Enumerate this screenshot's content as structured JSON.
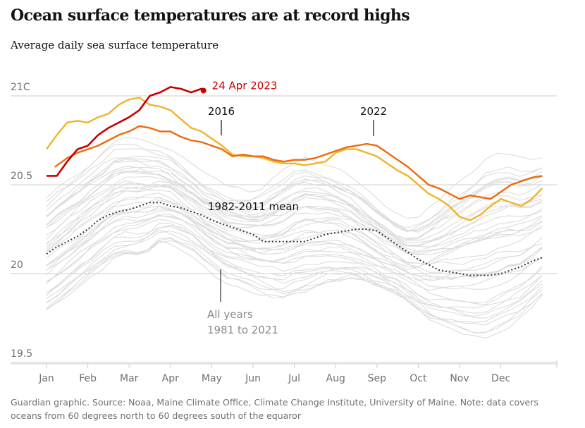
{
  "header": {
    "title": "Ocean surface temperatures are at record highs",
    "subtitle": "Average daily sea surface temperature"
  },
  "footer": {
    "source": "Guardian graphic. Source: Noaa, Maine Climate Office, Climate Change Institute, University of Maine. Note: data covers oceans from 60 degrees north to 60 degrees south of the equaror"
  },
  "colors": {
    "record_2023": "#c70000",
    "year_2022": "#ed6a0c",
    "year_2016": "#f0b429",
    "mean": "#333333",
    "all_years": "#dcdcdc",
    "axis_text": "#707070",
    "gridline": "#cccccc"
  },
  "chart_data": {
    "type": "line",
    "title": "Ocean surface temperatures are at record highs",
    "subtitle": "Average daily sea surface temperature",
    "x_unit": "month",
    "xticks": [
      "Jan",
      "Feb",
      "Mar",
      "Apr",
      "May",
      "Jun",
      "Jul",
      "Aug",
      "Sep",
      "Oct",
      "Nov",
      "Dec"
    ],
    "yticks": [
      {
        "value": 21,
        "label": "21C"
      },
      {
        "value": 20.5,
        "label": "20.5"
      },
      {
        "value": 20,
        "label": "20"
      },
      {
        "value": 19.5,
        "label": "19.5"
      }
    ],
    "ylim": [
      19.5,
      21.05
    ],
    "grid": "horizontal",
    "annotations": [
      {
        "series": "2023",
        "text": "24 Apr 2023"
      },
      {
        "series": "2016",
        "text": "2016"
      },
      {
        "series": "2022",
        "text": "2022"
      },
      {
        "series": "mean",
        "text": "1982-2011 mean"
      },
      {
        "series": "all",
        "text_lines": [
          "All years",
          "1981 to 2021"
        ]
      }
    ],
    "series": [
      {
        "name": "2023",
        "style": "solid",
        "x": [
          1,
          1.25,
          1.5,
          1.75,
          2,
          2.25,
          2.5,
          2.75,
          3,
          3.25,
          3.5,
          3.75,
          4,
          4.25,
          4.5,
          4.75,
          4.8
        ],
        "y": [
          20.55,
          20.55,
          20.63,
          20.7,
          20.72,
          20.78,
          20.82,
          20.85,
          20.88,
          20.92,
          21.0,
          21.02,
          21.05,
          21.04,
          21.02,
          21.04,
          21.03
        ]
      },
      {
        "name": "2016",
        "style": "solid",
        "x": [
          1,
          1.25,
          1.5,
          1.75,
          2,
          2.25,
          2.5,
          2.75,
          3,
          3.25,
          3.5,
          3.75,
          4,
          4.25,
          4.5,
          4.75,
          5,
          5.25,
          5.5,
          5.75,
          6,
          6.25,
          6.5,
          6.75,
          7,
          7.25,
          7.5,
          7.75,
          8,
          8.25,
          8.5,
          8.75,
          9,
          9.25,
          9.5,
          9.75,
          10,
          10.25,
          10.5,
          10.75,
          11,
          11.25,
          11.5,
          11.75,
          12,
          12.25,
          12.5,
          12.75,
          13
        ],
        "y": [
          20.7,
          20.78,
          20.85,
          20.86,
          20.85,
          20.88,
          20.9,
          20.95,
          20.98,
          20.99,
          20.95,
          20.94,
          20.92,
          20.87,
          20.82,
          20.8,
          20.76,
          20.72,
          20.67,
          20.66,
          20.66,
          20.65,
          20.63,
          20.62,
          20.62,
          20.61,
          20.62,
          20.63,
          20.68,
          20.7,
          20.7,
          20.68,
          20.66,
          20.62,
          20.58,
          20.55,
          20.5,
          20.45,
          20.42,
          20.38,
          20.32,
          20.3,
          20.33,
          20.38,
          20.42,
          20.4,
          20.38,
          20.42,
          20.48
        ]
      },
      {
        "name": "2022",
        "style": "solid",
        "x": [
          1.2,
          1.5,
          1.75,
          2,
          2.25,
          2.5,
          2.75,
          3,
          3.25,
          3.5,
          3.75,
          4,
          4.25,
          4.5,
          4.75,
          5,
          5.25,
          5.5,
          5.75,
          6,
          6.25,
          6.5,
          6.75,
          7,
          7.25,
          7.5,
          7.75,
          8,
          8.25,
          8.5,
          8.75,
          9,
          9.25,
          9.5,
          9.75,
          10,
          10.25,
          10.5,
          10.75,
          11,
          11.25,
          11.5,
          11.75,
          12,
          12.25,
          12.5,
          12.75,
          13
        ],
        "y": [
          20.6,
          20.65,
          20.68,
          20.7,
          20.72,
          20.75,
          20.78,
          20.8,
          20.83,
          20.82,
          20.8,
          20.8,
          20.77,
          20.75,
          20.74,
          20.72,
          20.7,
          20.66,
          20.67,
          20.66,
          20.66,
          20.64,
          20.63,
          20.64,
          20.64,
          20.65,
          20.67,
          20.69,
          20.71,
          20.72,
          20.73,
          20.72,
          20.68,
          20.64,
          20.6,
          20.55,
          20.5,
          20.48,
          20.45,
          20.42,
          20.44,
          20.43,
          20.42,
          20.46,
          20.5,
          20.52,
          20.54,
          20.55
        ]
      },
      {
        "name": "mean",
        "style": "dotted",
        "x": [
          1,
          1.25,
          1.5,
          1.75,
          2,
          2.25,
          2.5,
          2.75,
          3,
          3.25,
          3.5,
          3.75,
          4,
          4.25,
          4.5,
          4.75,
          5,
          5.25,
          5.5,
          5.75,
          6,
          6.25,
          6.5,
          6.75,
          7,
          7.25,
          7.5,
          7.75,
          8,
          8.25,
          8.5,
          8.75,
          9,
          9.25,
          9.5,
          9.75,
          10,
          10.25,
          10.5,
          10.75,
          11,
          11.25,
          11.5,
          11.75,
          12,
          12.25,
          12.5,
          12.75,
          13
        ],
        "y": [
          20.11,
          20.15,
          20.18,
          20.21,
          20.25,
          20.3,
          20.33,
          20.35,
          20.36,
          20.38,
          20.4,
          20.4,
          20.38,
          20.37,
          20.35,
          20.33,
          20.3,
          20.28,
          20.26,
          20.24,
          20.22,
          20.18,
          20.18,
          20.18,
          20.18,
          20.18,
          20.2,
          20.22,
          20.23,
          20.24,
          20.25,
          20.25,
          20.24,
          20.2,
          20.16,
          20.12,
          20.08,
          20.05,
          20.02,
          20.01,
          20.0,
          19.99,
          19.99,
          19.99,
          20.0,
          20.02,
          20.04,
          20.07,
          20.09
        ]
      },
      {
        "name": "All years 1981 to 2021",
        "style": "background",
        "band_low": [
          19.8,
          19.85,
          19.9,
          19.95,
          20.0,
          20.05,
          20.1,
          20.12,
          20.12,
          20.15,
          20.2,
          20.2,
          20.18,
          20.15,
          20.1,
          20.05,
          20.0,
          19.98,
          19.95,
          19.92,
          19.9,
          19.88,
          19.9,
          19.92,
          19.94,
          19.96,
          19.97,
          19.98,
          19.97,
          19.95,
          19.92,
          19.9,
          19.85,
          19.8,
          19.75,
          19.72,
          19.7,
          19.68,
          19.66,
          19.65,
          19.68,
          19.72,
          19.76,
          19.82,
          19.88
        ],
        "band_high": [
          20.4,
          20.45,
          20.5,
          20.55,
          20.6,
          20.65,
          20.7,
          20.72,
          20.72,
          20.7,
          20.68,
          20.65,
          20.6,
          20.55,
          20.5,
          20.48,
          20.45,
          20.44,
          20.43,
          20.45,
          20.5,
          20.55,
          20.6,
          20.62,
          20.6,
          20.58,
          20.55,
          20.5,
          20.45,
          20.4,
          20.35,
          20.3,
          20.28,
          20.3,
          20.35,
          20.4,
          20.45,
          20.5,
          20.55,
          20.6,
          20.62,
          20.62,
          20.6,
          20.6,
          20.62
        ]
      }
    ]
  }
}
